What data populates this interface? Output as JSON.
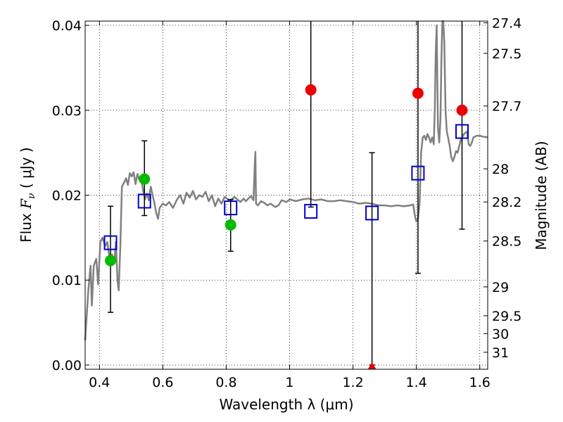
{
  "chart_data": {
    "type": "scatter",
    "xlabel": "Wavelength  λ (μm)",
    "ylabel": {
      "prefix": "Flux ",
      "variable": "F",
      "subscript": "ν",
      "suffix": " ( μJy )"
    },
    "y2label": "Magnitude (AB)",
    "xlim": [
      0.355,
      1.625
    ],
    "ylim": [
      -0.0005,
      0.0405
    ],
    "x_ticks": [
      0.4,
      0.6,
      0.8,
      1.0,
      1.2,
      1.4,
      1.6
    ],
    "x_tick_labels": [
      "0.4",
      "0.6",
      "0.8",
      "1",
      "1.2",
      "1.4",
      "1.6"
    ],
    "y_ticks": [
      0.0,
      0.01,
      0.02,
      0.03,
      0.04
    ],
    "y_tick_labels": [
      "0.00",
      "0.01",
      "0.02",
      "0.03",
      "0.04"
    ],
    "mag_ticks": [
      {
        "label": "27.4",
        "flux": 0.0403
      },
      {
        "label": "27.5",
        "flux": 0.0367
      },
      {
        "label": "27.7",
        "flux": 0.0305
      },
      {
        "label": "28",
        "flux": 0.0231
      },
      {
        "label": "28.2",
        "flux": 0.0192
      },
      {
        "label": "28.5",
        "flux": 0.0146
      },
      {
        "label": "29",
        "flux": 0.0092
      },
      {
        "label": "29.5",
        "flux": 0.0058
      },
      {
        "label": "30",
        "flux": 0.0037
      },
      {
        "label": "31",
        "flux": 0.0015
      }
    ],
    "grid": true,
    "colors": {
      "spectrum": "#808080",
      "model_band": "#0000cc",
      "detection": "#00bb00",
      "high": "#ee0000",
      "errorbar": "#000000"
    },
    "spectrum": [
      [
        0.355,
        0.0029
      ],
      [
        0.365,
        0.0088
      ],
      [
        0.372,
        0.0117
      ],
      [
        0.376,
        0.007
      ],
      [
        0.382,
        0.0117
      ],
      [
        0.39,
        0.0125
      ],
      [
        0.396,
        0.0095
      ],
      [
        0.403,
        0.0145
      ],
      [
        0.41,
        0.015
      ],
      [
        0.418,
        0.014
      ],
      [
        0.425,
        0.0145
      ],
      [
        0.432,
        0.0125
      ],
      [
        0.44,
        0.013
      ],
      [
        0.447,
        0.012
      ],
      [
        0.452,
        0.0145
      ],
      [
        0.457,
        0.01
      ],
      [
        0.461,
        0.0088
      ],
      [
        0.466,
        0.014
      ],
      [
        0.471,
        0.021
      ],
      [
        0.478,
        0.0215
      ],
      [
        0.484,
        0.022
      ],
      [
        0.49,
        0.0212
      ],
      [
        0.496,
        0.0226
      ],
      [
        0.502,
        0.0222
      ],
      [
        0.508,
        0.0227
      ],
      [
        0.514,
        0.0213
      ],
      [
        0.52,
        0.0225
      ],
      [
        0.526,
        0.0218
      ],
      [
        0.532,
        0.022
      ],
      [
        0.538,
        0.0205
      ],
      [
        0.544,
        0.0195
      ],
      [
        0.55,
        0.0202
      ],
      [
        0.556,
        0.0194
      ],
      [
        0.562,
        0.021
      ],
      [
        0.568,
        0.02
      ],
      [
        0.574,
        0.019
      ],
      [
        0.58,
        0.0178
      ],
      [
        0.585,
        0.0172
      ],
      [
        0.59,
        0.0185
      ],
      [
        0.6,
        0.019
      ],
      [
        0.61,
        0.0188
      ],
      [
        0.62,
        0.0192
      ],
      [
        0.632,
        0.0185
      ],
      [
        0.645,
        0.0195
      ],
      [
        0.655,
        0.02
      ],
      [
        0.665,
        0.019
      ],
      [
        0.675,
        0.0203
      ],
      [
        0.685,
        0.0197
      ],
      [
        0.695,
        0.0205
      ],
      [
        0.705,
        0.0195
      ],
      [
        0.715,
        0.02
      ],
      [
        0.725,
        0.0198
      ],
      [
        0.735,
        0.0204
      ],
      [
        0.745,
        0.0193
      ],
      [
        0.755,
        0.02
      ],
      [
        0.765,
        0.0187
      ],
      [
        0.775,
        0.0196
      ],
      [
        0.785,
        0.019
      ],
      [
        0.795,
        0.0198
      ],
      [
        0.805,
        0.0195
      ],
      [
        0.815,
        0.0193
      ],
      [
        0.825,
        0.0198
      ],
      [
        0.835,
        0.0195
      ],
      [
        0.845,
        0.0192
      ],
      [
        0.855,
        0.0196
      ],
      [
        0.862,
        0.0193
      ],
      [
        0.87,
        0.0196
      ],
      [
        0.878,
        0.0199
      ],
      [
        0.886,
        0.0194
      ],
      [
        0.89,
        0.0235
      ],
      [
        0.892,
        0.0251
      ],
      [
        0.894,
        0.019
      ],
      [
        0.9,
        0.0188
      ],
      [
        0.91,
        0.0193
      ],
      [
        0.92,
        0.0191
      ],
      [
        0.93,
        0.0188
      ],
      [
        0.94,
        0.019
      ],
      [
        0.955,
        0.0186
      ],
      [
        0.965,
        0.0188
      ],
      [
        0.975,
        0.0194
      ],
      [
        0.99,
        0.0192
      ],
      [
        1.0,
        0.0195
      ],
      [
        1.02,
        0.0193
      ],
      [
        1.04,
        0.0195
      ],
      [
        1.06,
        0.0196
      ],
      [
        1.08,
        0.0194
      ],
      [
        1.1,
        0.0195
      ],
      [
        1.12,
        0.0193
      ],
      [
        1.14,
        0.0193
      ],
      [
        1.16,
        0.0194
      ],
      [
        1.18,
        0.0193
      ],
      [
        1.2,
        0.0192
      ],
      [
        1.22,
        0.019
      ],
      [
        1.24,
        0.0191
      ],
      [
        1.26,
        0.019
      ],
      [
        1.28,
        0.0188
      ],
      [
        1.3,
        0.0188
      ],
      [
        1.32,
        0.0187
      ],
      [
        1.34,
        0.0188
      ],
      [
        1.36,
        0.0187
      ],
      [
        1.38,
        0.0188
      ],
      [
        1.39,
        0.0189
      ],
      [
        1.395,
        0.0176
      ],
      [
        1.4,
        0.0169
      ],
      [
        1.405,
        0.0172
      ],
      [
        1.41,
        0.019
      ],
      [
        1.415,
        0.025
      ],
      [
        1.42,
        0.0268
      ],
      [
        1.425,
        0.027
      ],
      [
        1.43,
        0.0265
      ],
      [
        1.435,
        0.0272
      ],
      [
        1.44,
        0.0268
      ],
      [
        1.445,
        0.0262
      ],
      [
        1.45,
        0.0268
      ],
      [
        1.455,
        0.026
      ],
      [
        1.458,
        0.03
      ],
      [
        1.461,
        0.0365
      ],
      [
        1.464,
        0.04
      ],
      [
        1.468,
        0.028
      ],
      [
        1.472,
        0.0262
      ],
      [
        1.476,
        0.029
      ],
      [
        1.479,
        0.036
      ],
      [
        1.482,
        0.0405
      ],
      [
        1.485,
        0.0405
      ],
      [
        1.488,
        0.038
      ],
      [
        1.492,
        0.03
      ],
      [
        1.496,
        0.0275
      ],
      [
        1.5,
        0.0268
      ],
      [
        1.505,
        0.0258
      ],
      [
        1.51,
        0.0245
      ],
      [
        1.515,
        0.024
      ],
      [
        1.52,
        0.0245
      ],
      [
        1.525,
        0.0252
      ],
      [
        1.53,
        0.025
      ],
      [
        1.54,
        0.0265
      ],
      [
        1.55,
        0.0272
      ],
      [
        1.56,
        0.0275
      ],
      [
        1.565,
        0.026
      ],
      [
        1.57,
        0.0258
      ],
      [
        1.575,
        0.0262
      ],
      [
        1.58,
        0.0268
      ],
      [
        1.59,
        0.027
      ],
      [
        1.6,
        0.027
      ],
      [
        1.61,
        0.0269
      ],
      [
        1.625,
        0.0268
      ]
    ],
    "model_points": [
      {
        "x": 0.435,
        "y": 0.0144
      },
      {
        "x": 0.542,
        "y": 0.0193
      },
      {
        "x": 0.814,
        "y": 0.0185
      },
      {
        "x": 1.067,
        "y": 0.0181
      },
      {
        "x": 1.26,
        "y": 0.0179
      },
      {
        "x": 1.405,
        "y": 0.0226
      },
      {
        "x": 1.544,
        "y": 0.0275
      }
    ],
    "detections": [
      {
        "x": 0.435,
        "y": 0.0123,
        "ylow": 0.0062,
        "yhigh": 0.0187
      },
      {
        "x": 0.542,
        "y": 0.0219,
        "ylow": 0.0176,
        "yhigh": 0.0264
      },
      {
        "x": 0.814,
        "y": 0.0165,
        "ylow": 0.0134,
        "yhigh": 0.0195
      }
    ],
    "high_points": [
      {
        "x": 1.067,
        "y": 0.0324,
        "ylow": 0.0186,
        "yhigh": 0.0405
      },
      {
        "x": 1.26,
        "y": 0.0,
        "ylow": 0.0,
        "yhigh": 0.025,
        "marker": "triangle"
      },
      {
        "x": 1.405,
        "y": 0.032,
        "ylow": 0.0108,
        "yhigh": 0.0405
      },
      {
        "x": 1.544,
        "y": 0.03,
        "ylow": 0.016,
        "yhigh": 0.0405
      }
    ]
  }
}
